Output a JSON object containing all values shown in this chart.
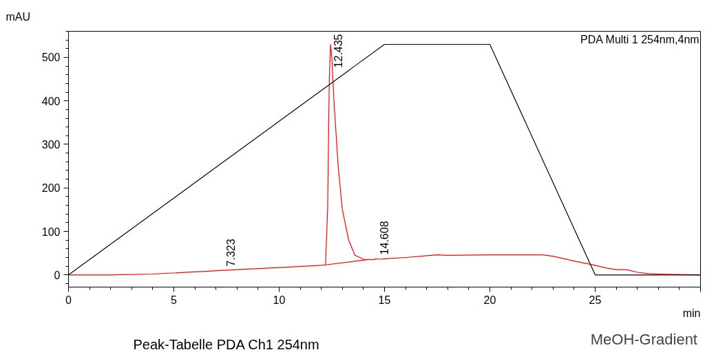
{
  "chart_data": {
    "type": "line",
    "xlabel": "min",
    "ylabel": "mAU",
    "xlim": [
      0,
      30
    ],
    "ylim": [
      -28,
      560
    ],
    "xticks": [
      0,
      5,
      10,
      15,
      20,
      25,
      {
        "value": 30,
        "label": null
      }
    ],
    "yticks": [
      0,
      100,
      200,
      300,
      400,
      500
    ],
    "grid": false,
    "legend": "bottom right",
    "marker": "none",
    "line_style": "solid",
    "series": [
      {
        "color": "#ff0000",
        "x": [
          0,
          2,
          4,
          6,
          8,
          10,
          12,
          12.2,
          12.3,
          12.38,
          12.44,
          12.5,
          12.6,
          12.8,
          13,
          13.3,
          13.6,
          14,
          14.5,
          14.6,
          14.7,
          15,
          16,
          17,
          17.5,
          18,
          20,
          22.5,
          23,
          24,
          25,
          25.5,
          26,
          26.5,
          27,
          27.5,
          28,
          30
        ],
        "values": [
          0,
          0,
          2,
          7,
          12,
          17,
          22,
          23,
          150,
          450,
          530,
          500,
          400,
          250,
          150,
          80,
          45,
          36,
          35,
          37,
          36,
          37,
          40,
          44,
          46,
          45,
          46,
          46,
          43,
          32,
          22,
          16,
          12,
          12,
          6,
          3,
          2,
          0
        ]
      },
      {
        "color": "#ff0000",
        "x": [
          12.2,
          14.2
        ],
        "values": [
          23,
          35
        ]
      },
      {
        "name": "MeOH-Gradient",
        "color": "#000000",
        "x": [
          0,
          15,
          20,
          25,
          30
        ],
        "values": [
          0,
          530,
          530,
          0,
          0
        ]
      }
    ],
    "annotations": [
      {
        "text": "7.323",
        "x": 7.323,
        "y": 10
      },
      {
        "text": "12.435",
        "x": 12.435,
        "y": 530
      },
      {
        "text": "14.608",
        "x": 14.608,
        "y": 37
      },
      "PDA Multi 1 254nm,4nm",
      "Peak-Tabelle PDA Ch1 254nm"
    ]
  }
}
